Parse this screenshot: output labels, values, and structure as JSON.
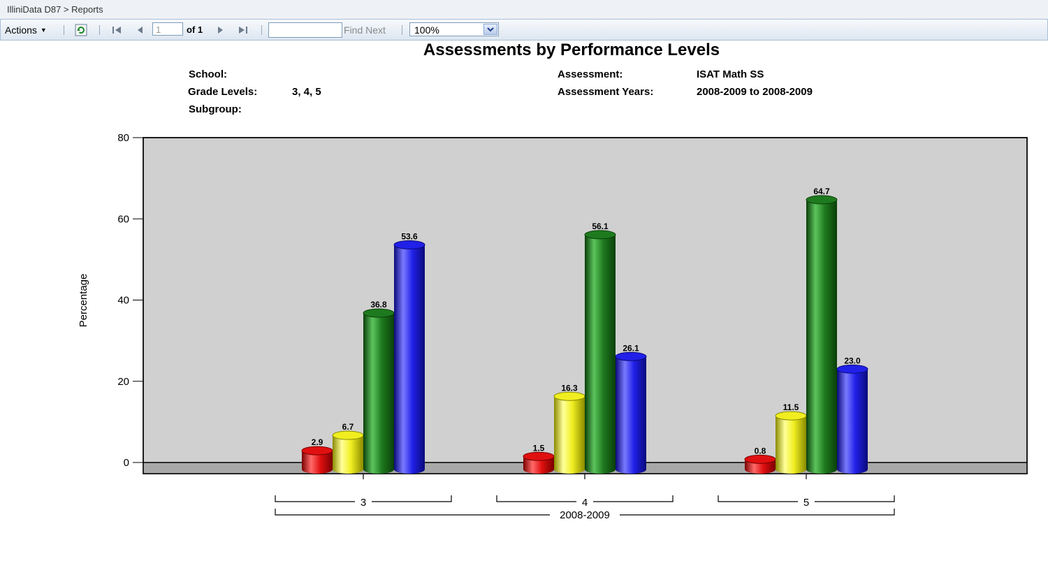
{
  "breadcrumb": "IlliniData D87 > Reports",
  "toolbar": {
    "actions_label": "Actions",
    "page_value": "1",
    "page_of": "of 1",
    "find_placeholder": "",
    "find_next_label": "Find Next",
    "zoom_value": "100%"
  },
  "report": {
    "title": "Assessments by Performance Levels",
    "school_label": "School:",
    "school_value": "",
    "grade_label": "Grade Levels:",
    "grade_value": "3, 4, 5",
    "subgroup_label": "Subgroup:",
    "subgroup_value": "",
    "assessment_label": "Assessment:",
    "assessment_value": "ISAT Math SS",
    "years_label": "Assessment Years:",
    "years_value": "2008-2009 to 2008-2009"
  },
  "colors": {
    "red": "#e01010",
    "yellow": "#f0ee20",
    "green": "#1e7a1e",
    "blue": "#2020e8",
    "plot_bg": "#d0d0d0"
  },
  "chart_data": {
    "type": "bar",
    "ylabel": "Percentage",
    "xlabel": "",
    "ylim": [
      0,
      80
    ],
    "yticks": [
      0,
      20,
      40,
      60,
      80
    ],
    "categories": [
      "3",
      "4",
      "5"
    ],
    "group_label": "2008-2009",
    "grid": false,
    "series": [
      {
        "color": "red",
        "values": [
          2.9,
          1.5,
          0.8
        ]
      },
      {
        "color": "yellow",
        "values": [
          6.7,
          16.3,
          11.5
        ]
      },
      {
        "color": "green",
        "values": [
          36.8,
          56.1,
          64.7
        ]
      },
      {
        "color": "blue",
        "values": [
          53.6,
          26.1,
          23.0
        ]
      }
    ]
  }
}
